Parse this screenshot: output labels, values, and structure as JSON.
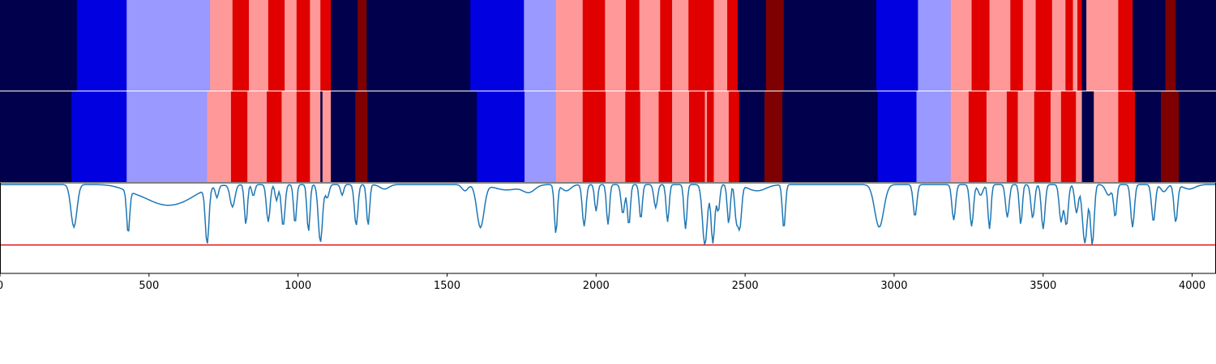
{
  "chart_data": {
    "type": "heatmap",
    "title": "",
    "xlabel": "",
    "ylabel": "",
    "xlim": [
      0,
      4080
    ],
    "x_ticks": [
      0,
      500,
      1000,
      1500,
      2000,
      2500,
      3000,
      3500,
      4000
    ],
    "x_tick_labels": [
      "0",
      "500",
      "1000",
      "1500",
      "2000",
      "2500",
      "3000",
      "3500",
      "4000"
    ],
    "palette": {
      "0": "#00004c",
      "1": "#0000e0",
      "2": "#9999ff",
      "3": "#ff9999",
      "4": "#e00000",
      "5": "#7f0000"
    },
    "tracks": [
      {
        "name": "",
        "segments": [
          [
            0,
            258,
            0
          ],
          [
            258,
            425,
            1
          ],
          [
            425,
            705,
            2
          ],
          [
            705,
            780,
            3
          ],
          [
            780,
            835,
            4
          ],
          [
            835,
            900,
            3
          ],
          [
            900,
            955,
            4
          ],
          [
            955,
            995,
            3
          ],
          [
            995,
            1040,
            4
          ],
          [
            1040,
            1075,
            3
          ],
          [
            1075,
            1110,
            4
          ],
          [
            1110,
            1200,
            0
          ],
          [
            1200,
            1230,
            5
          ],
          [
            1230,
            1578,
            0
          ],
          [
            1578,
            1758,
            1
          ],
          [
            1758,
            1865,
            2
          ],
          [
            1865,
            1955,
            3
          ],
          [
            1955,
            2030,
            4
          ],
          [
            2030,
            2100,
            3
          ],
          [
            2100,
            2145,
            4
          ],
          [
            2145,
            2215,
            3
          ],
          [
            2215,
            2255,
            4
          ],
          [
            2255,
            2310,
            3
          ],
          [
            2310,
            2395,
            4
          ],
          [
            2395,
            2440,
            3
          ],
          [
            2440,
            2475,
            4
          ],
          [
            2475,
            2570,
            0
          ],
          [
            2570,
            2630,
            5
          ],
          [
            2630,
            2940,
            0
          ],
          [
            2940,
            3080,
            1
          ],
          [
            3080,
            3190,
            2
          ],
          [
            3190,
            3260,
            3
          ],
          [
            3260,
            3320,
            4
          ],
          [
            3320,
            3390,
            3
          ],
          [
            3390,
            3432,
            4
          ],
          [
            3432,
            3475,
            3
          ],
          [
            3475,
            3530,
            4
          ],
          [
            3530,
            3575,
            3
          ],
          [
            3575,
            3600,
            4
          ],
          [
            3600,
            3615,
            3
          ],
          [
            3615,
            3630,
            4
          ],
          [
            3630,
            3645,
            0
          ],
          [
            3645,
            3665,
            3
          ],
          [
            3665,
            3752,
            3
          ],
          [
            3752,
            3800,
            4
          ],
          [
            3800,
            3910,
            0
          ],
          [
            3910,
            3945,
            5
          ],
          [
            3945,
            4080,
            0
          ]
        ]
      },
      {
        "name": "",
        "segments": [
          [
            0,
            240,
            0
          ],
          [
            240,
            425,
            1
          ],
          [
            425,
            695,
            2
          ],
          [
            695,
            775,
            3
          ],
          [
            775,
            830,
            4
          ],
          [
            830,
            895,
            3
          ],
          [
            895,
            945,
            4
          ],
          [
            945,
            995,
            3
          ],
          [
            995,
            1040,
            4
          ],
          [
            1040,
            1075,
            3
          ],
          [
            1075,
            1082,
            0
          ],
          [
            1082,
            1110,
            3
          ],
          [
            1110,
            1192,
            0
          ],
          [
            1192,
            1233,
            5
          ],
          [
            1233,
            1600,
            0
          ],
          [
            1600,
            1760,
            1
          ],
          [
            1760,
            1865,
            2
          ],
          [
            1865,
            1955,
            3
          ],
          [
            1955,
            2032,
            4
          ],
          [
            2032,
            2098,
            3
          ],
          [
            2098,
            2148,
            4
          ],
          [
            2148,
            2210,
            3
          ],
          [
            2210,
            2255,
            4
          ],
          [
            2255,
            2312,
            3
          ],
          [
            2312,
            2365,
            4
          ],
          [
            2365,
            2372,
            3
          ],
          [
            2372,
            2395,
            4
          ],
          [
            2395,
            2445,
            3
          ],
          [
            2445,
            2480,
            4
          ],
          [
            2480,
            2565,
            0
          ],
          [
            2565,
            2625,
            5
          ],
          [
            2625,
            2945,
            0
          ],
          [
            2945,
            3075,
            1
          ],
          [
            3075,
            3190,
            2
          ],
          [
            3190,
            3250,
            3
          ],
          [
            3250,
            3310,
            4
          ],
          [
            3310,
            3378,
            3
          ],
          [
            3378,
            3415,
            4
          ],
          [
            3415,
            3470,
            3
          ],
          [
            3470,
            3525,
            4
          ],
          [
            3525,
            3560,
            3
          ],
          [
            3560,
            3610,
            4
          ],
          [
            3610,
            3630,
            3
          ],
          [
            3630,
            3670,
            0
          ],
          [
            3670,
            3752,
            3
          ],
          [
            3752,
            3808,
            4
          ],
          [
            3808,
            3895,
            0
          ],
          [
            3895,
            3955,
            5
          ],
          [
            3955,
            4080,
            0
          ]
        ]
      }
    ],
    "line": {
      "color": "#1f77b4",
      "ylim": [
        -1.0,
        0.02
      ],
      "baseline": 0,
      "threshold": -0.68,
      "threshold_color": "#e41a1c",
      "dips": [
        [
          248,
          -0.48,
          10
        ],
        [
          430,
          -0.48,
          5
        ],
        [
          440,
          -0.05,
          40
        ],
        [
          520,
          -0.12,
          50
        ],
        [
          600,
          -0.18,
          60
        ],
        [
          695,
          -0.62,
          6
        ],
        [
          728,
          -0.13,
          5
        ],
        [
          780,
          -0.25,
          8
        ],
        [
          825,
          -0.45,
          5
        ],
        [
          850,
          -0.13,
          5
        ],
        [
          900,
          -0.42,
          6
        ],
        [
          928,
          -0.18,
          5
        ],
        [
          950,
          -0.47,
          6
        ],
        [
          990,
          -0.44,
          5
        ],
        [
          1035,
          -0.53,
          5
        ],
        [
          1075,
          -0.65,
          7
        ],
        [
          1098,
          -0.15,
          6
        ],
        [
          1148,
          -0.12,
          5
        ],
        [
          1195,
          -0.46,
          6
        ],
        [
          1235,
          -0.46,
          5
        ],
        [
          1290,
          -0.05,
          15
        ],
        [
          1560,
          -0.07,
          10
        ],
        [
          1612,
          -0.48,
          12
        ],
        [
          1700,
          -0.06,
          40
        ],
        [
          1775,
          -0.08,
          20
        ],
        [
          1865,
          -0.55,
          5
        ],
        [
          1900,
          -0.07,
          15
        ],
        [
          1960,
          -0.47,
          6
        ],
        [
          2000,
          -0.3,
          5
        ],
        [
          2040,
          -0.45,
          5
        ],
        [
          2090,
          -0.33,
          6
        ],
        [
          2110,
          -0.46,
          5
        ],
        [
          2150,
          -0.39,
          5
        ],
        [
          2200,
          -0.26,
          6
        ],
        [
          2240,
          -0.42,
          5
        ],
        [
          2300,
          -0.5,
          5
        ],
        [
          2365,
          -0.68,
          8
        ],
        [
          2392,
          -0.66,
          6
        ],
        [
          2410,
          -0.3,
          5
        ],
        [
          2445,
          -0.44,
          5
        ],
        [
          2470,
          -0.36,
          5
        ],
        [
          2482,
          -0.48,
          6
        ],
        [
          2540,
          -0.07,
          30
        ],
        [
          2630,
          -0.5,
          5
        ],
        [
          2950,
          -0.48,
          15
        ],
        [
          3070,
          -0.36,
          6
        ],
        [
          3200,
          -0.4,
          6
        ],
        [
          3260,
          -0.47,
          6
        ],
        [
          3290,
          -0.12,
          8
        ],
        [
          3320,
          -0.5,
          5
        ],
        [
          3380,
          -0.37,
          6
        ],
        [
          3425,
          -0.45,
          5
        ],
        [
          3465,
          -0.38,
          6
        ],
        [
          3500,
          -0.5,
          6
        ],
        [
          3560,
          -0.42,
          6
        ],
        [
          3578,
          -0.46,
          6
        ],
        [
          3612,
          -0.32,
          6
        ],
        [
          3640,
          -0.66,
          8
        ],
        [
          3665,
          -0.68,
          6
        ],
        [
          3720,
          -0.12,
          10
        ],
        [
          3742,
          -0.36,
          5
        ],
        [
          3800,
          -0.48,
          6
        ],
        [
          3870,
          -0.42,
          6
        ],
        [
          3905,
          -0.08,
          10
        ],
        [
          3945,
          -0.42,
          6
        ],
        [
          3990,
          -0.05,
          20
        ]
      ]
    }
  }
}
